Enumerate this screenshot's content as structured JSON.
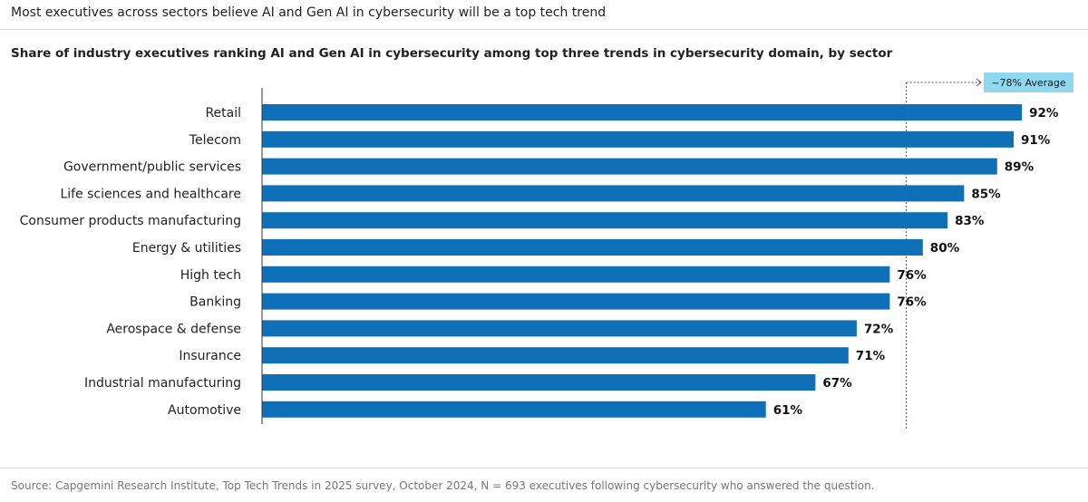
{
  "header": {
    "headline": "Most executives across sectors believe AI and Gen AI in cybersecurity will be a top tech trend"
  },
  "chart_data": {
    "type": "bar",
    "orientation": "horizontal",
    "title": "Share of industry executives ranking AI and Gen AI in cybersecurity among top three trends in cybersecurity domain, by sector",
    "categories": [
      "Retail",
      "Telecom",
      "Government/public services",
      "Life sciences and healthcare",
      "Consumer products manufacturing",
      "Energy & utilities",
      "High tech",
      "Banking",
      "Aerospace & defense",
      "Insurance",
      "Industrial manufacturing",
      "Automotive"
    ],
    "values": [
      92,
      91,
      89,
      85,
      83,
      80,
      76,
      76,
      72,
      71,
      67,
      61
    ],
    "value_labels": [
      "92%",
      "91%",
      "89%",
      "85%",
      "83%",
      "80%",
      "76%",
      "76%",
      "72%",
      "71%",
      "67%",
      "61%"
    ],
    "unit": "%",
    "average": {
      "value": 78,
      "label": "~78% Average"
    },
    "xlim": [
      0,
      100
    ],
    "grid": false,
    "bar_color": "#0f70b7",
    "average_box_color": "#8fd8f0"
  },
  "footer": {
    "source": "Source: Capgemini Research Institute, Top Tech Trends in 2025 survey, October 2024, N = 693 executives following cybersecurity who answered the question."
  }
}
